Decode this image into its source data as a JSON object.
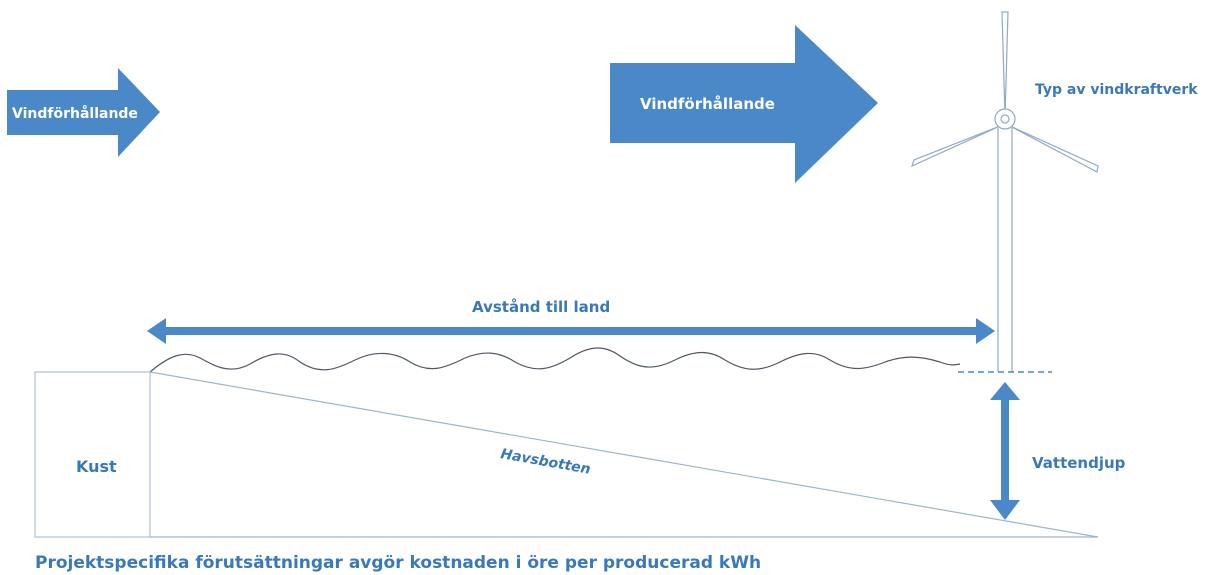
{
  "labels": {
    "wind_left": "Vindförhållande",
    "wind_right": "Vindförhållande",
    "turbine_type": "Typ av vindkraftverk",
    "distance": "Avstånd till land",
    "coast": "Kust",
    "seabed": "Havsbotten",
    "water_depth": "Vattendjup",
    "caption": "Projektspecifika förutsättningar avgör kostnaden i öre per producerad kWh"
  },
  "colors": {
    "arrow_fill": "#4a88c8",
    "text_blue": "#3a78b8",
    "line_blue": "#9db5cf",
    "wave": "#4d5a66"
  }
}
